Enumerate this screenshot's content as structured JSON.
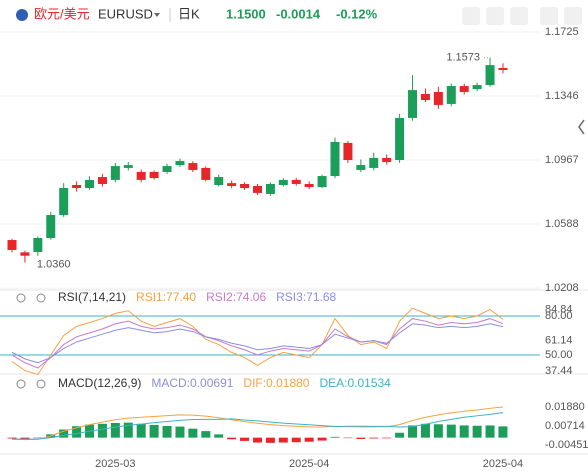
{
  "header": {
    "symbol_name": "欧元/美元",
    "symbol": "EURUSD",
    "period": "日K",
    "price": "1.1500",
    "change": "-0.0014",
    "change_pct": "-0.12%"
  },
  "chart_data": [
    {
      "type": "candlestick",
      "categories": [
        null,
        null,
        null,
        null,
        null,
        null,
        null,
        null,
        "2025-03",
        null,
        null,
        null,
        null,
        null,
        null,
        null,
        null,
        null,
        null,
        null,
        null,
        null,
        null,
        "2025-04",
        null,
        null,
        null,
        null,
        null,
        null,
        null,
        null,
        null,
        null,
        null,
        null,
        null,
        null,
        "2025-04"
      ],
      "open": [
        1.0493,
        1.042,
        1.0422,
        1.0505,
        1.0641,
        1.0819,
        1.0801,
        1.0866,
        1.0849,
        1.092,
        1.0896,
        1.0896,
        1.0896,
        1.0937,
        1.0949,
        1.092,
        1.0819,
        1.083,
        1.0825,
        1.0813,
        1.0766,
        1.0819,
        1.0849,
        1.0825,
        1.0807,
        1.0872,
        1.1068,
        1.0908,
        1.092,
        1.0979,
        1.0967,
        1.1216,
        1.1358,
        1.137,
        1.1299,
        1.1405,
        1.1387,
        1.1411,
        1.1512
      ],
      "high": [
        1.05,
        1.043,
        1.0515,
        1.066,
        1.083,
        1.084,
        1.087,
        1.0885,
        1.095,
        1.0955,
        1.091,
        1.0905,
        1.0945,
        1.0975,
        1.096,
        1.093,
        1.088,
        1.0845,
        1.0835,
        1.0825,
        1.0835,
        1.086,
        1.086,
        1.084,
        1.088,
        1.11,
        1.108,
        1.097,
        1.101,
        1.1,
        1.124,
        1.147,
        1.139,
        1.14,
        1.142,
        1.142,
        1.1425,
        1.1573,
        1.154
      ],
      "low": [
        1.042,
        1.036,
        1.04,
        1.0495,
        1.063,
        1.078,
        1.079,
        1.081,
        1.0835,
        1.0905,
        1.0835,
        1.085,
        1.0885,
        1.0925,
        1.0895,
        1.084,
        1.081,
        1.08,
        1.079,
        1.076,
        1.0755,
        1.081,
        1.0815,
        1.0795,
        1.08,
        1.086,
        1.095,
        1.0895,
        1.0905,
        1.094,
        1.095,
        1.12,
        1.131,
        1.127,
        1.1285,
        1.1355,
        1.1375,
        1.14,
        1.148
      ],
      "close": [
        1.0434,
        1.04,
        1.0505,
        1.0641,
        1.0801,
        1.0801,
        1.0849,
        1.0825,
        1.0931,
        1.0937,
        1.0849,
        1.086,
        1.0931,
        1.0961,
        1.0908,
        1.0849,
        1.0866,
        1.0813,
        1.0801,
        1.0772,
        1.0825,
        1.0849,
        1.0825,
        1.0807,
        1.0872,
        1.1074,
        1.0967,
        1.0937,
        1.0979,
        1.0955,
        1.1216,
        1.1381,
        1.1322,
        1.1293,
        1.1405,
        1.137,
        1.1411,
        1.1529,
        1.15
      ],
      "up_color": "#1b9e5a",
      "down_color": "#e8262a",
      "ylim": [
        1.0197,
        1.1737
      ],
      "yticks": [
        1.1725,
        1.1346,
        1.0967,
        1.0588,
        1.0208
      ],
      "grid": true,
      "annotations": {
        "max": "1.1573",
        "min": "1.0360"
      }
    },
    {
      "type": "line",
      "title": "RSI(7,14,21)",
      "series": [
        {
          "name": "RSI1:77.40",
          "color": "#f5a142",
          "values": [
            45,
            38,
            35,
            50,
            65,
            72,
            75,
            78,
            82,
            84,
            76,
            72,
            75,
            78,
            72,
            62,
            58,
            52,
            48,
            42,
            48,
            52,
            50,
            48,
            58,
            78,
            65,
            58,
            60,
            55,
            76,
            86,
            82,
            78,
            80,
            78,
            80,
            85,
            77.4
          ]
        },
        {
          "name": "RSI2:74.06",
          "color": "#c879c8",
          "values": [
            50,
            44,
            40,
            48,
            58,
            64,
            67,
            70,
            74,
            76,
            72,
            70,
            71,
            73,
            70,
            64,
            61,
            57,
            54,
            50,
            53,
            55,
            54,
            53,
            58,
            70,
            64,
            60,
            61,
            58,
            70,
            78,
            76,
            73,
            75,
            74,
            75,
            78,
            74.06
          ]
        },
        {
          "name": "RSI3:71.68",
          "color": "#8a8fe0",
          "values": [
            52,
            47,
            44,
            48,
            55,
            60,
            63,
            66,
            69,
            71,
            69,
            67,
            68,
            70,
            68,
            64,
            62,
            59,
            57,
            54,
            55,
            57,
            56,
            55,
            58,
            66,
            63,
            60,
            61,
            59,
            67,
            74,
            73,
            71,
            72,
            71,
            72,
            74,
            71.68
          ]
        }
      ],
      "ylim": [
        36.9,
        92.3
      ],
      "yticks": [
        {
          "value": 80,
          "label": "80.00"
        },
        84.84,
        61.14,
        {
          "value": 50,
          "label": "50.00"
        },
        37.44
      ],
      "hlines": [
        80,
        50
      ],
      "hline_color": "#3bb2c8"
    },
    {
      "type": "combo",
      "title": "MACD(12,26,9)",
      "series": [
        {
          "name": "MACD:0.00691",
          "type": "bar",
          "color": "#8a8fd8",
          "up_color": "#1b9e5a",
          "down_color": "#e8262a",
          "values": [
            -0.0005,
            -0.0008,
            -0.0003,
            0.002,
            0.005,
            0.007,
            0.008,
            0.0085,
            0.009,
            0.0092,
            0.0085,
            0.0078,
            0.0072,
            0.0068,
            0.0055,
            0.004,
            0.002,
            -0.001,
            -0.002,
            -0.003,
            -0.0032,
            -0.003,
            -0.0028,
            -0.0025,
            -0.0018,
            0.0005,
            -0.0003,
            -0.0008,
            -0.0005,
            -0.0004,
            0.003,
            0.0075,
            0.0085,
            0.0082,
            0.008,
            0.0075,
            0.0073,
            0.0075,
            0.00691
          ]
        },
        {
          "name": "DIF:0.01880",
          "type": "line",
          "color": "#f5a142",
          "values": [
            -0.001,
            -0.0012,
            -0.001,
            0.001,
            0.004,
            0.006,
            0.008,
            0.0095,
            0.011,
            0.012,
            0.0125,
            0.013,
            0.0135,
            0.014,
            0.0138,
            0.0132,
            0.0122,
            0.011,
            0.0098,
            0.0088,
            0.008,
            0.0074,
            0.007,
            0.0066,
            0.0065,
            0.007,
            0.0068,
            0.0066,
            0.0066,
            0.0067,
            0.008,
            0.0105,
            0.0125,
            0.014,
            0.0152,
            0.0162,
            0.017,
            0.018,
            0.0188
          ]
        },
        {
          "name": "DEA:0.01534",
          "type": "line",
          "color": "#3bb2c8",
          "values": [
            -0.0008,
            -0.0009,
            -0.0009,
            0.0,
            0.0015,
            0.0025,
            0.004,
            0.0052,
            0.0065,
            0.0075,
            0.0083,
            0.0092,
            0.0099,
            0.0106,
            0.0111,
            0.0112,
            0.0112,
            0.0115,
            0.0108,
            0.0103,
            0.0096,
            0.0089,
            0.0084,
            0.0079,
            0.0074,
            0.0068,
            0.007,
            0.007,
            0.0069,
            0.0069,
            0.0065,
            0.0068,
            0.0082,
            0.0099,
            0.0112,
            0.0125,
            0.0134,
            0.0143,
            0.01534
          ]
        }
      ],
      "ylim": [
        -0.0088,
        0.0323
      ],
      "yticks": [
        {
          "value": 0.0188,
          "label": "0.01880"
        },
        0.00714,
        -0.00451
      ]
    }
  ]
}
